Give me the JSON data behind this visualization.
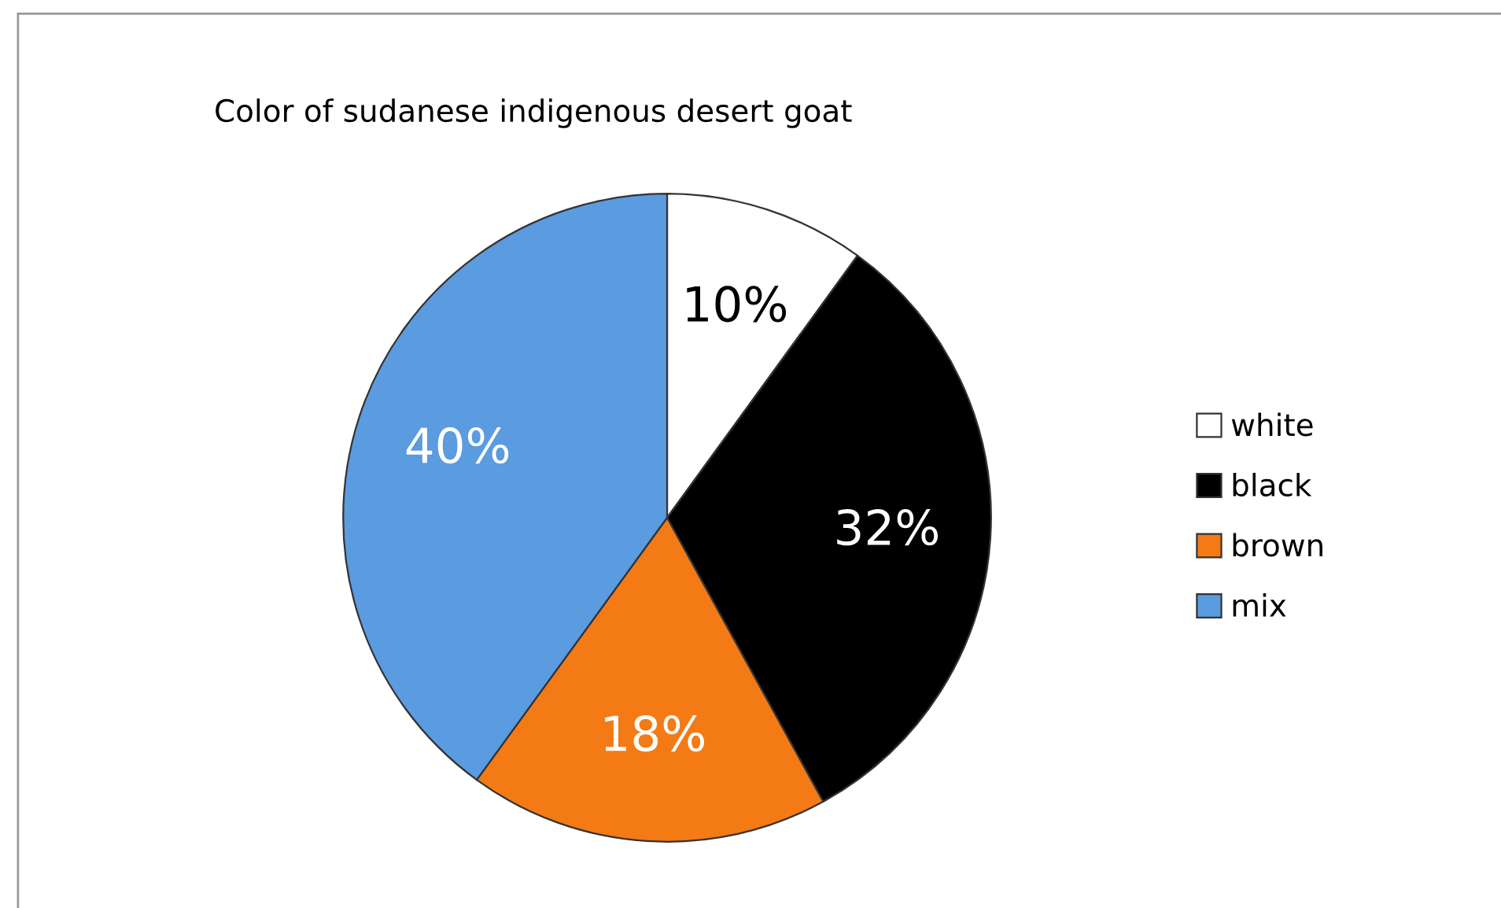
{
  "chart_data": {
    "type": "pie",
    "title": "Color of sudanese indigenous desert goat",
    "categories": [
      "white",
      "black",
      "brown",
      "mix"
    ],
    "values": [
      10,
      32,
      18,
      40
    ],
    "colors": [
      "#ffffff",
      "#000000",
      "#f47a16",
      "#5b9be0"
    ],
    "value_labels": [
      "10%",
      "32%",
      "18%",
      "40%"
    ],
    "legend": "right"
  }
}
